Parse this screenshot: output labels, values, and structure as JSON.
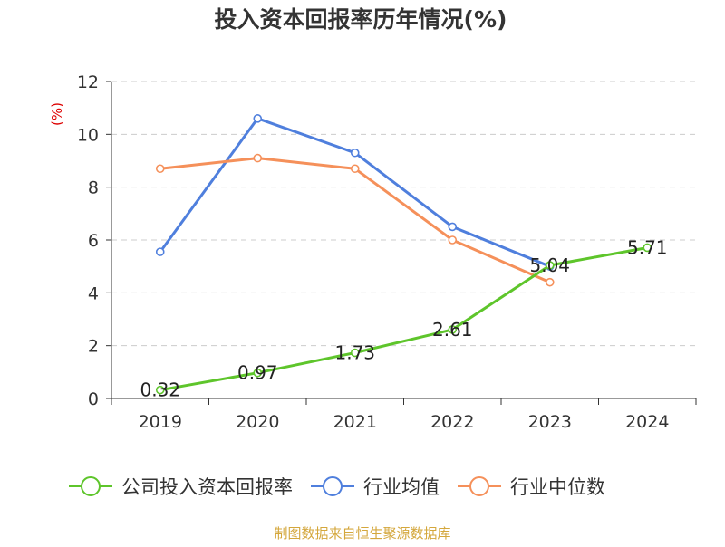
{
  "chart_data": {
    "type": "line",
    "title": "投入资本回报率历年情况(%)",
    "ylabel": "(%)",
    "xlabel": "",
    "categories": [
      "2019",
      "2020",
      "2021",
      "2022",
      "2023",
      "2024"
    ],
    "ylim": [
      0,
      12
    ],
    "yticks": [
      0,
      2,
      4,
      6,
      8,
      10,
      12
    ],
    "grid": true,
    "legend_position": "bottom",
    "series": [
      {
        "name": "公司投入资本回报率",
        "color": "#5ec52b",
        "values": [
          0.32,
          0.97,
          1.73,
          2.61,
          5.04,
          5.71
        ],
        "labels": [
          "0.32",
          "0.97",
          "1.73",
          "2.61",
          "5.04",
          "5.71"
        ]
      },
      {
        "name": "行业均值",
        "color": "#4f7fdd",
        "values": [
          5.55,
          10.6,
          9.3,
          6.5,
          5.0,
          null
        ]
      },
      {
        "name": "行业中位数",
        "color": "#f5905a",
        "values": [
          8.7,
          9.1,
          8.7,
          6.0,
          4.4,
          null
        ]
      }
    ]
  },
  "source": "制图数据来自恒生聚源数据库",
  "colors": {
    "title": "#333333",
    "ylabel": "#dd0000",
    "source": "#d4a73c",
    "axis": "#333333",
    "grid": "#cccccc"
  }
}
